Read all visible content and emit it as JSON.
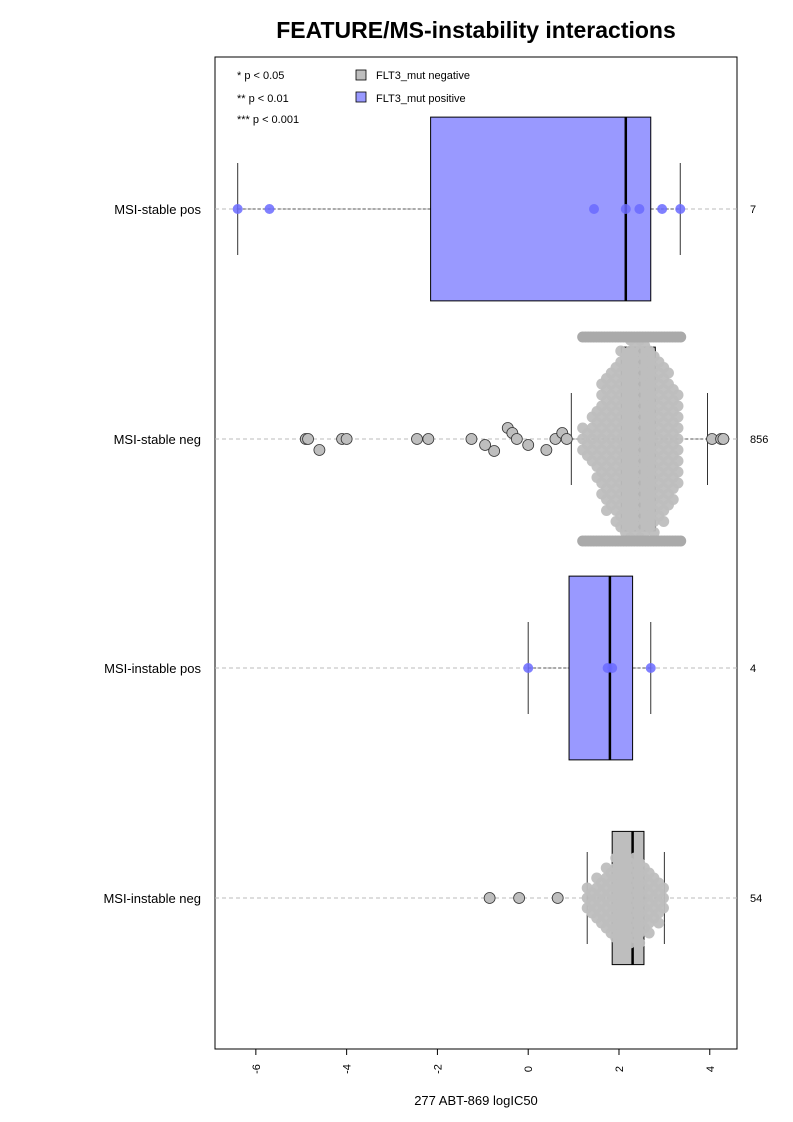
{
  "chart_data": {
    "type": "box",
    "orientation": "horizontal",
    "title": "FEATURE/MS-instability interactions",
    "xlabel": "277 ABT-869 logIC50",
    "xlim": [
      -6.9,
      4.6
    ],
    "xticks": [
      -6,
      -4,
      -2,
      0,
      2,
      4
    ],
    "xtick_labels": [
      "-6",
      "-4",
      "-2",
      "0",
      "2",
      "4"
    ],
    "grid": "horizontal dashed lines per group",
    "significance_legend": [
      "* p < 0.05",
      "** p < 0.01",
      "*** p < 0.001"
    ],
    "legend": {
      "placement": "top-left",
      "entries": [
        {
          "label": "FLT3_mut negative",
          "color": "#bebebe"
        },
        {
          "label": "FLT3_mut positive",
          "color": "#9999ff"
        }
      ]
    },
    "groups": [
      {
        "label": "MSI-stable pos",
        "n": "7",
        "color": "#9999ff",
        "point_color": "#6a6aff",
        "box": {
          "whisker_low": -6.4,
          "q1": -2.15,
          "median": 2.15,
          "q3": 2.7,
          "whisker_high": 3.35
        },
        "box_height": 0.8,
        "points": [
          -6.4,
          -5.7,
          1.45,
          2.15,
          2.45,
          2.95,
          3.35
        ],
        "outliers": [],
        "beeswarm": false
      },
      {
        "label": "MSI-stable neg",
        "n": "856",
        "color": "#bebebe",
        "point_color": "#bebebe",
        "box": {
          "whisker_low": 0.95,
          "q1": 2.05,
          "median": 2.45,
          "q3": 2.8,
          "whisker_high": 3.95
        },
        "box_height": 0.8,
        "points": [],
        "outliers": [
          -4.9,
          -4.85,
          -4.6,
          -4.1,
          -4.0,
          -2.45,
          -2.2,
          -1.25,
          -0.95,
          -0.75,
          -0.45,
          -0.35,
          -0.25,
          0.0,
          0.4,
          0.6,
          0.75,
          0.85,
          4.05,
          4.25,
          4.3
        ],
        "beeswarm": true,
        "swarm_range": [
          1.2,
          3.4
        ]
      },
      {
        "label": "MSI-instable pos",
        "n": "4",
        "color": "#9999ff",
        "point_color": "#6a6aff",
        "box": {
          "whisker_low": 0.0,
          "q1": 0.9,
          "median": 1.8,
          "q3": 2.3,
          "whisker_high": 2.7
        },
        "box_height": 0.8,
        "points": [
          0.0,
          1.75,
          1.85,
          2.7
        ],
        "outliers": [],
        "beeswarm": false
      },
      {
        "label": "MSI-instable neg",
        "n": "54",
        "color": "#bebebe",
        "point_color": "#bebebe",
        "box": {
          "whisker_low": 1.3,
          "q1": 1.85,
          "median": 2.3,
          "q3": 2.55,
          "whisker_high": 3.0
        },
        "box_height": 0.58,
        "points": [],
        "outliers": [
          -0.85,
          -0.2,
          0.65
        ],
        "beeswarm": true,
        "swarm_range": [
          1.3,
          3.0
        ]
      }
    ]
  }
}
